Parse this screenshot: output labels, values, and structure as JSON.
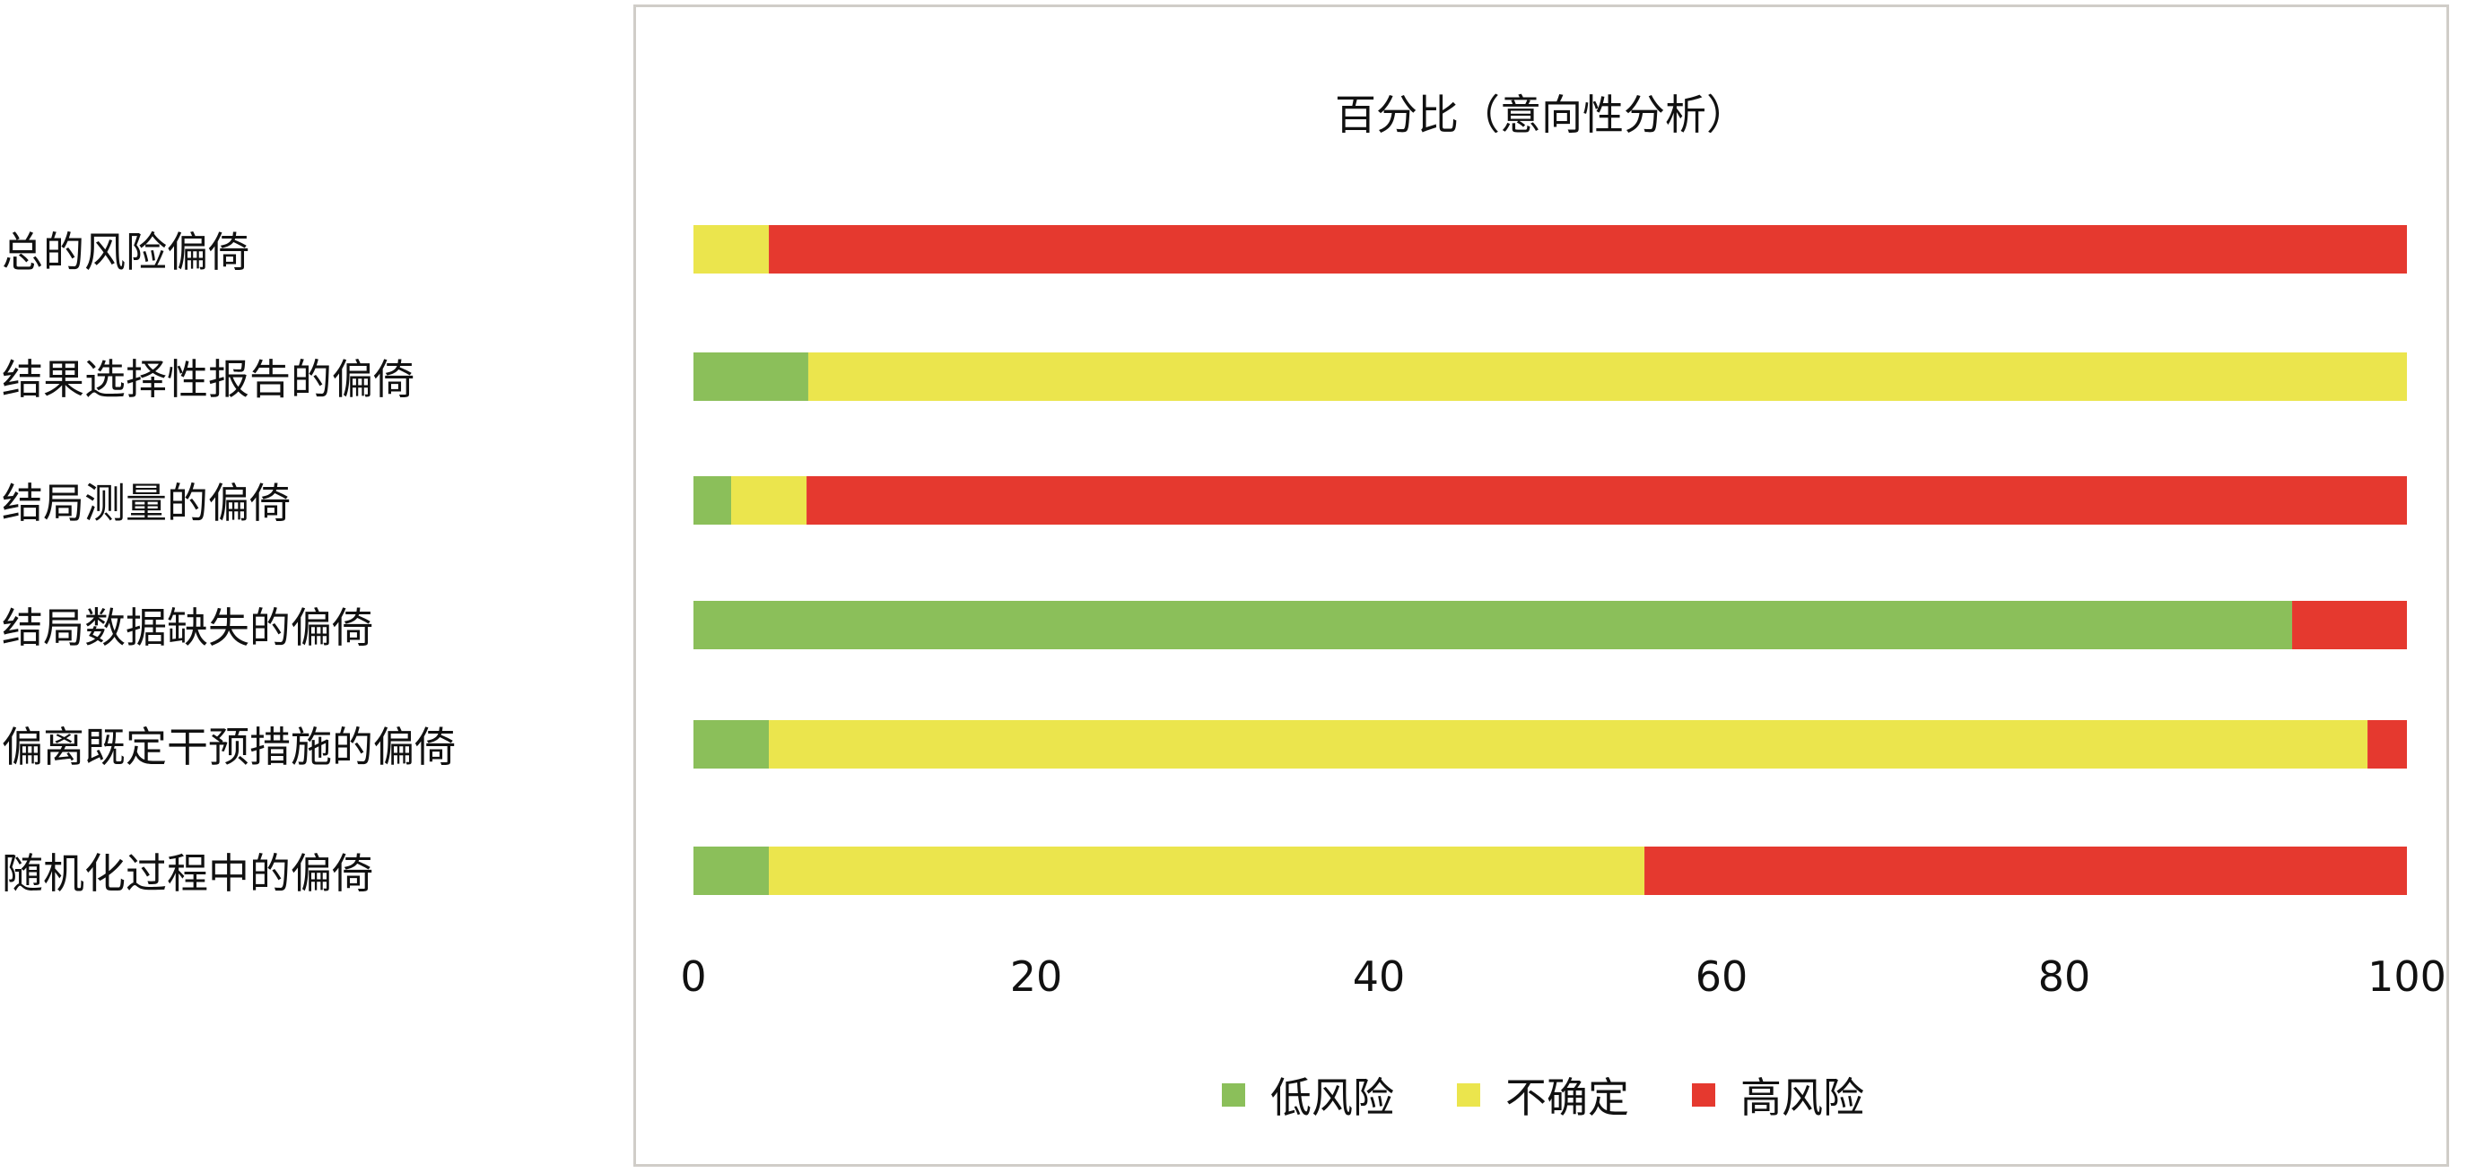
{
  "chart_data": {
    "type": "bar",
    "orientation": "horizontal",
    "stacked": true,
    "title": "百分比（意向性分析）",
    "categories": [
      "总的风险偏倚",
      "结果选择性报告的偏倚",
      "结局测量的偏倚",
      "结局数据缺失的偏倚",
      "偏离既定干预措施的偏倚",
      "随机化过程中的偏倚"
    ],
    "series": [
      {
        "name": "低风险",
        "color": "#8bbf5a",
        "values": [
          0,
          6.7,
          2.2,
          93.3,
          4.4,
          4.4
        ]
      },
      {
        "name": "不确定",
        "color": "#ebe54d",
        "values": [
          4.4,
          93.3,
          4.4,
          0,
          93.3,
          51.1
        ]
      },
      {
        "name": "高风险",
        "color": "#e5392f",
        "values": [
          95.6,
          0,
          93.4,
          6.7,
          2.3,
          44.5
        ]
      }
    ],
    "xlim": [
      0,
      100
    ],
    "xticks": [
      "0",
      "20",
      "40",
      "60",
      "80",
      "100"
    ],
    "grid": false,
    "legend_position": "bottom"
  }
}
